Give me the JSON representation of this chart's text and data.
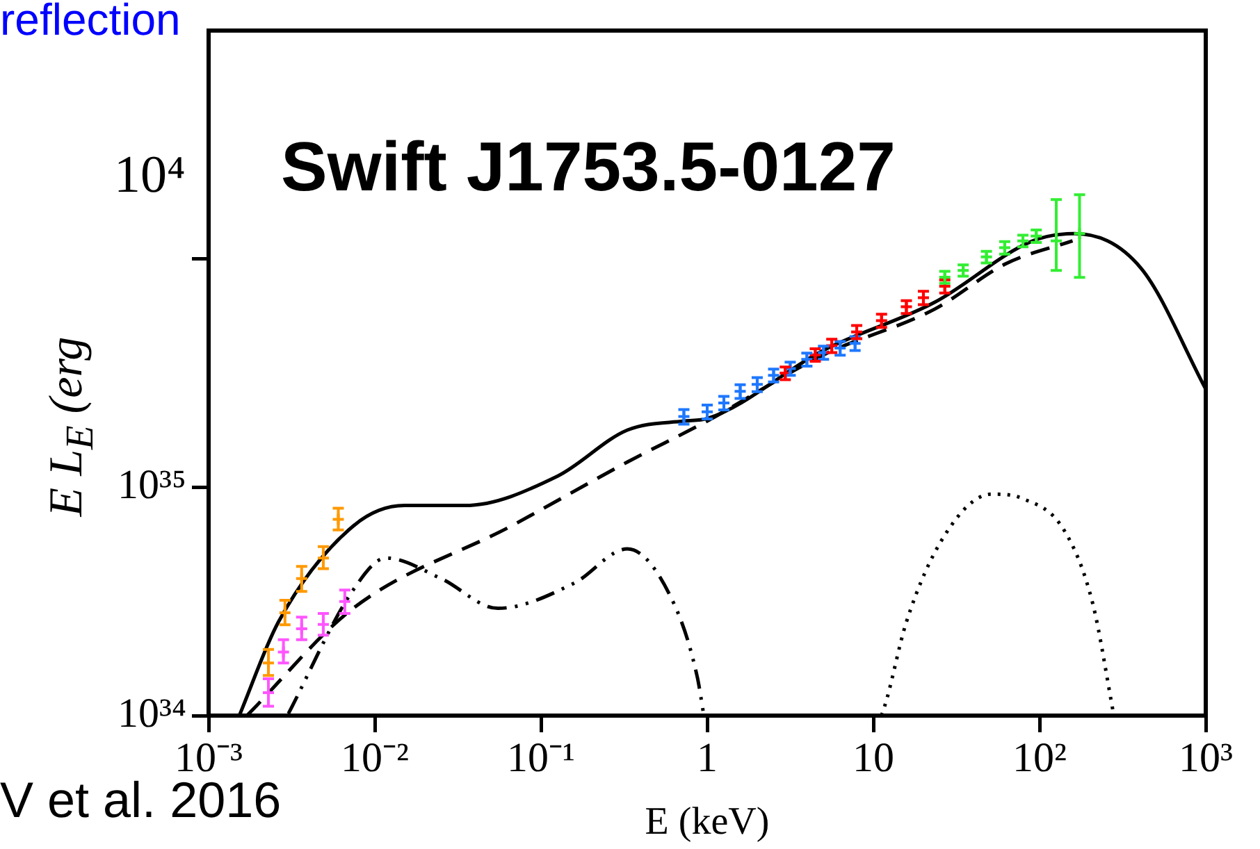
{
  "chart_data": {
    "type": "line",
    "title": "Swift J1753.5-0127",
    "xlabel": "E (keV)",
    "ylabel": "E L$_{E}$ (erg",
    "log": "xy",
    "grid": false,
    "legend": false,
    "xlim": [
      0.001,
      1000
    ],
    "ylim": [
      1e+34,
      1e+37
    ],
    "xticks": [
      {
        "value": 0.001,
        "label": "10⁻³"
      },
      {
        "value": 0.01,
        "label": "10⁻²"
      },
      {
        "value": 0.1,
        "label": "10⁻¹"
      },
      1,
      10,
      {
        "value": 100,
        "label": "10²"
      },
      {
        "value": 1000,
        "label": "10³"
      }
    ],
    "yticks": [
      {
        "value": 1e+34,
        "label": "10³⁴"
      },
      {
        "value": 1e+35,
        "label": "10³⁵"
      },
      {
        "value": 1e+36,
        "label": null
      }
    ],
    "annotations": [
      "reflection",
      "10⁴",
      "V et al. 2016"
    ],
    "series": [
      {
        "type": "line",
        "color": "#000000",
        "line_style": "solid",
        "x": [
          0.00153,
          0.00263,
          0.00741,
          0.0151,
          0.0347,
          0.126,
          0.331,
          0.724,
          1.0,
          5.01,
          23.4,
          91.2,
          162,
          407,
          1000
        ],
        "values": [
          1e+34,
          2.57e+34,
          6.76e+34,
          8.32e+34,
          8.32e+34,
          1.12e+35,
          1.78e+35,
          1.95e+35,
          2e+35,
          3.98e+35,
          6.46e+35,
          1.2e+36,
          1.29e+36,
          9.12e+35,
          2.69e+35
        ]
      },
      {
        "type": "line",
        "color": "#000000",
        "line_style": "dashed",
        "x": [
          0.0017,
          0.00741,
          0.0661,
          0.331,
          1.0,
          5.01,
          23.4,
          63.1,
          158
        ],
        "values": [
          1e+34,
          2.95e+34,
          6.76e+34,
          1.29e+35,
          1.95e+35,
          3.8e+35,
          6.03e+35,
          9.55e+35,
          1.2e+36
        ]
      },
      {
        "type": "line",
        "color": "#000000",
        "line_style": "dashdot",
        "x": [
          0.00302,
          0.00741,
          0.0117,
          0.0251,
          0.055,
          0.158,
          0.331,
          0.631,
          0.871,
          0.955
        ],
        "values": [
          1.02e+34,
          3.55e+34,
          4.9e+34,
          3.98e+34,
          2.95e+34,
          3.8e+34,
          5.37e+34,
          3.09e+34,
          1.48e+34,
          1e+34
        ]
      },
      {
        "type": "line",
        "color": "#000000",
        "line_style": "dotted",
        "x": [
          11.2,
          12.0,
          15.8,
          26.9,
          51.3,
          79.4,
          141,
          209,
          280
        ],
        "values": [
          1e+34,
          1.17e+34,
          2.57e+34,
          6.17e+34,
          9.33e+34,
          8.91e+34,
          6.46e+34,
          3.09e+34,
          1e+34
        ]
      },
      {
        "type": "scatter",
        "marker": "cross",
        "color": "#ff9900",
        "x": [
          0.00229,
          0.00288,
          0.00363,
          0.0049,
          0.00603
        ],
        "values": [
          1.7e+34,
          2.82e+34,
          3.98e+34,
          4.9e+34,
          7.24e+34
        ],
        "errors": [
          [
            1.5e+34,
            1.95e+34
          ],
          [
            2.5e+34,
            3.2e+34
          ],
          [
            3.5e+34,
            4.5e+34
          ],
          [
            4.4e+34,
            5.5e+34
          ],
          [
            6.5e+34,
            8.1e+34
          ]
        ]
      },
      {
        "type": "scatter",
        "marker": "cross",
        "color": "#ff55ff",
        "x": [
          0.00229,
          0.00282,
          0.00363,
          0.0049,
          0.0066
        ],
        "values": [
          1.26e+34,
          1.9e+34,
          2.4e+34,
          2.51e+34,
          3.16e+34
        ],
        "errors": [
          [
            1.1e+34,
            1.45e+34
          ],
          [
            1.7e+34,
            2.15e+34
          ],
          [
            2.15e+34,
            2.7e+34
          ],
          [
            2.25e+34,
            2.8e+34
          ],
          [
            2.8e+34,
            3.55e+34
          ]
        ]
      },
      {
        "type": "scatter",
        "marker": "cross",
        "color": "#1e78ff",
        "x": [
          0.724,
          1.0,
          1.26,
          1.58,
          2.0,
          2.51,
          3.16,
          3.98,
          5.01,
          6.31,
          7.76
        ],
        "values": [
          2.04e+35,
          2.14e+35,
          2.34e+35,
          2.63e+35,
          2.82e+35,
          3.09e+35,
          3.31e+35,
          3.63e+35,
          3.89e+35,
          4.07e+35,
          4.27e+35
        ],
        "errors": [
          1.5e+34,
          1.5e+34,
          1.6e+34,
          1.8e+34,
          2e+34,
          2e+34,
          2.2e+34,
          2.4e+34,
          2.6e+34,
          2.8e+34,
          3e+34
        ]
      },
      {
        "type": "scatter",
        "marker": "cross",
        "color": "#ff0000",
        "x": [
          2.95,
          4.47,
          5.62,
          7.94,
          11.2,
          15.8,
          20.0,
          26.9
        ],
        "values": [
          3.16e+35,
          3.8e+35,
          4.17e+35,
          4.79e+35,
          5.37e+35,
          6.17e+35,
          6.76e+35,
          7.59e+35
        ],
        "errors": [
          2e+34,
          2.4e+34,
          2.8e+34,
          3.2e+34,
          3.6e+34,
          4e+34,
          4.5e+34,
          5e+34
        ]
      },
      {
        "type": "scatter",
        "marker": "cross",
        "color": "#33ee33",
        "x": [
          26.9,
          34.7,
          47.9,
          61.7,
          79.4,
          95.5,
          126,
          174
        ],
        "values": [
          8.32e+35,
          8.91e+35,
          1.02e+36,
          1.12e+36,
          1.2e+36,
          1.26e+36,
          1.2e+36,
          1.29e+36
        ],
        "errors": [
          5e+34,
          5e+34,
          6e+34,
          7e+34,
          7e+34,
          8e+34,
          [
            8.9e+35,
            1.82e+36
          ],
          [
            8.3e+35,
            1.91e+36
          ]
        ]
      }
    ]
  }
}
